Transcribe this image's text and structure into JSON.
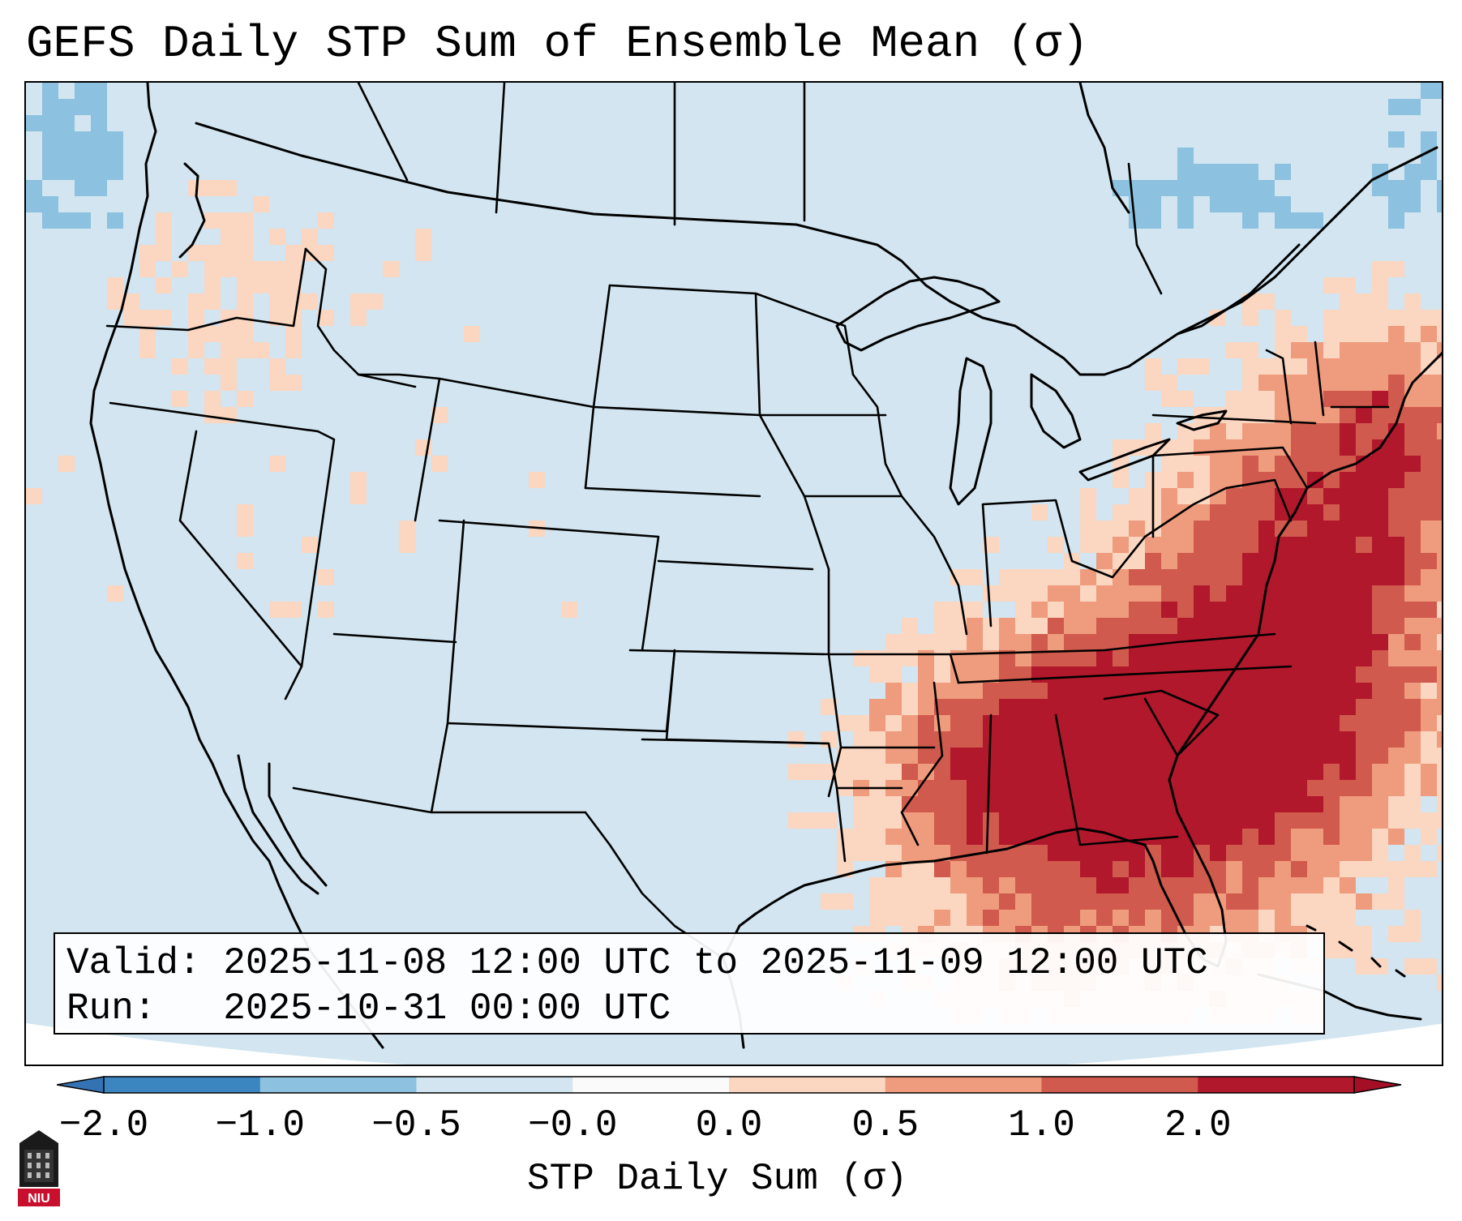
{
  "title": "GEFS Daily STP Sum of Ensemble Mean (σ)",
  "info": {
    "valid_line": "Valid: 2025-11-08 12:00 UTC to 2025-11-09 12:00 UTC",
    "run_line": "Run:   2025-10-31 00:00 UTC"
  },
  "colorbar": {
    "label": "STP Daily Sum (σ)",
    "ticks": [
      "−2.0",
      "−1.0",
      "−0.5",
      "−0.0",
      "0.0",
      "0.5",
      "1.0",
      "2.0"
    ],
    "colors": [
      "#3b86c0",
      "#8cc1df",
      "#d2e5f0",
      "#fafafa",
      "#fbd6c0",
      "#ef9b7d",
      "#d05a4d",
      "#b2182b"
    ],
    "extend_low_color": "#3473b3",
    "extend_high_color": "#a50f26"
  },
  "map": {
    "background_color": "#d2e5f0",
    "region": "Contiguous United States",
    "highlight_region": "Southeast United States"
  },
  "logo": {
    "text": "NIU"
  }
}
